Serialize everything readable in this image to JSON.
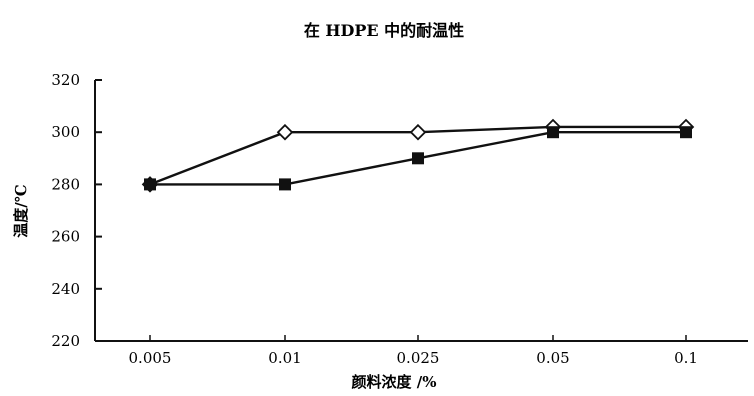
{
  "chart_data": {
    "type": "line",
    "title": "在 HDPE 中的耐温性",
    "xlabel": "颜料浓度 /%",
    "ylabel": "温度/℃",
    "categories": [
      "0.005",
      "0.01",
      "0.025",
      "0.05",
      "0.1"
    ],
    "ylim": [
      220,
      320
    ],
    "yticks": [
      "220",
      "240",
      "260",
      "280",
      "300",
      "320"
    ],
    "series": [
      {
        "marker": "open-diamond",
        "color": "#111111",
        "values": [
          280,
          300,
          300,
          302,
          302
        ]
      },
      {
        "marker": "filled-square",
        "color": "#111111",
        "values": [
          280,
          280,
          290,
          300,
          300
        ]
      }
    ],
    "grid": false,
    "legend": "none"
  }
}
